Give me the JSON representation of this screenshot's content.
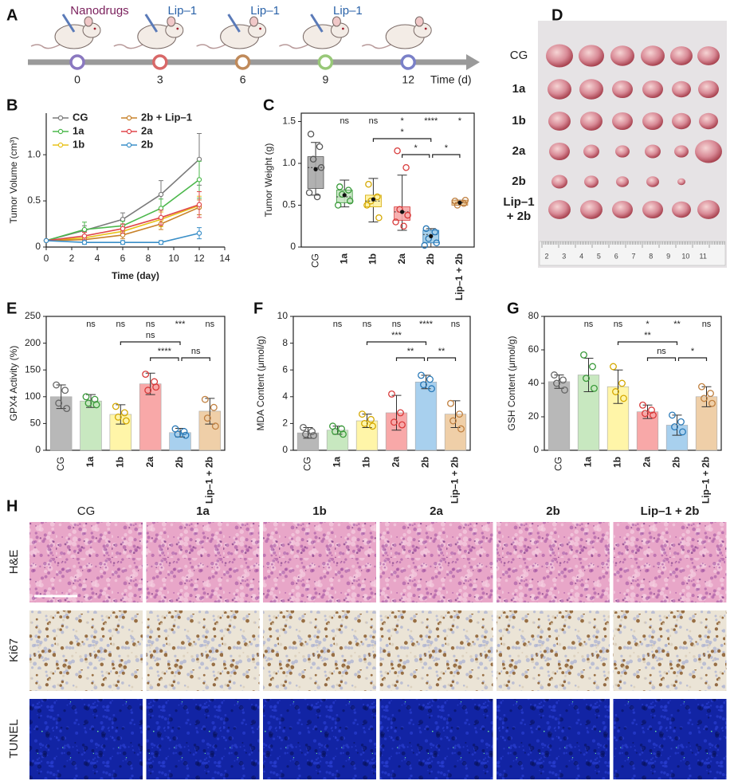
{
  "panel_labels": [
    "A",
    "B",
    "C",
    "D",
    "E",
    "F",
    "G",
    "H"
  ],
  "timeline": {
    "treatments": [
      "Nanodrugs",
      "Lip–1",
      "Lip–1",
      "Lip–1"
    ],
    "treatment_colors": [
      "#7a1f5c",
      "#2a62a8",
      "#2a62a8",
      "#2a62a8"
    ],
    "days": [
      0,
      3,
      6,
      9,
      12
    ],
    "day_colors": [
      "#8a78c0",
      "#d86868",
      "#c08a5a",
      "#98c878",
      "#7a80c8"
    ],
    "axis_label": "Time (d)"
  },
  "chart_data": [
    {
      "type": "line",
      "xlabel": "Time (day)",
      "ylabel": "Tumor Volume (cm³)",
      "x": [
        0,
        3,
        6,
        9,
        12
      ],
      "xlim": [
        0,
        14
      ],
      "xticks": [
        0,
        2,
        4,
        6,
        8,
        10,
        12,
        14
      ],
      "ylim": [
        0,
        1.45
      ],
      "yticks": [
        0,
        0.5,
        {
          "value": 1,
          "label": "1.0"
        }
      ],
      "series": [
        {
          "name": "CG",
          "color": "#7a7a7a",
          "values": [
            0.07,
            0.18,
            0.3,
            0.57,
            0.95
          ],
          "errors": [
            0.01,
            0.05,
            0.07,
            0.15,
            0.28
          ]
        },
        {
          "name": "1a",
          "color": "#4cb84c",
          "values": [
            0.07,
            0.19,
            0.23,
            0.42,
            0.73
          ],
          "errors": [
            0.01,
            0.08,
            0.05,
            0.1,
            0.2
          ]
        },
        {
          "name": "1b",
          "color": "#e8c21a",
          "values": [
            0.07,
            0.1,
            0.17,
            0.3,
            0.45
          ],
          "errors": [
            0.01,
            0.03,
            0.04,
            0.08,
            0.1
          ]
        },
        {
          "name": "2b + Lip–1",
          "color": "#c8822a",
          "values": [
            0.07,
            0.08,
            0.13,
            0.25,
            0.43
          ],
          "errors": [
            0.01,
            0.03,
            0.04,
            0.06,
            0.08
          ]
        },
        {
          "name": "2a",
          "color": "#e0474c",
          "values": [
            0.07,
            0.12,
            0.2,
            0.32,
            0.46
          ],
          "errors": [
            0.01,
            0.04,
            0.05,
            0.08,
            0.14
          ]
        },
        {
          "name": "2b",
          "color": "#3a8fc8",
          "values": [
            0.07,
            0.05,
            0.05,
            0.05,
            0.15
          ],
          "errors": [
            0.01,
            0.02,
            0.02,
            0.02,
            0.06
          ]
        }
      ]
    },
    {
      "type": "box",
      "ylabel": "Tumor Weight (g)",
      "categories": [
        "CG",
        "1a",
        "1b",
        "2a",
        "2b",
        "Lip–1 + 2b"
      ],
      "colors": [
        "#a8a8a8",
        "#c4e6c0",
        "#fff2a0",
        "#f6a8a8",
        "#a0cce8",
        "#efcf9f"
      ],
      "edge_colors": [
        "#555555",
        "#3a9a3a",
        "#d4a800",
        "#d83a3a",
        "#2a7ab8",
        "#c08040"
      ],
      "ylim": [
        0,
        1.6
      ],
      "yticks": [
        0,
        0.5,
        {
          "value": 1,
          "label": "1.0"
        },
        1.5
      ],
      "boxes": [
        {
          "whisker_low": 0.62,
          "q1": 0.7,
          "median": 0.95,
          "q3": 1.08,
          "whisker_high": 1.25,
          "mean": 0.93,
          "points": [
            1.35,
            1.2,
            1.05,
            0.95,
            0.65,
            0.6
          ]
        },
        {
          "whisker_low": 0.48,
          "q1": 0.53,
          "median": 0.6,
          "q3": 0.68,
          "whisker_high": 0.8,
          "mean": 0.62,
          "points": [
            0.72,
            0.68,
            0.63,
            0.55,
            0.5
          ]
        },
        {
          "whisker_low": 0.3,
          "q1": 0.48,
          "median": 0.55,
          "q3": 0.62,
          "whisker_high": 0.82,
          "mean": 0.57,
          "points": [
            0.75,
            0.6,
            0.55,
            0.35,
            0.5
          ]
        },
        {
          "whisker_low": 0.2,
          "q1": 0.32,
          "median": 0.42,
          "q3": 0.48,
          "whisker_high": 0.86,
          "mean": 0.42,
          "points": [
            1.15,
            0.95,
            0.45,
            0.38,
            0.3,
            0.25
          ]
        },
        {
          "whisker_low": 0,
          "q1": 0.05,
          "median": 0.15,
          "q3": 0.2,
          "whisker_high": 0.22,
          "mean": 0.13,
          "points": [
            0.22,
            0.18,
            0.1,
            0.05,
            0.02
          ]
        },
        {
          "whisker_low": 0.5,
          "q1": 0.5,
          "median": 0.53,
          "q3": 0.56,
          "whisker_high": 0.56,
          "mean": 0.53,
          "points": [
            0.55,
            0.52,
            0.5,
            0.56
          ]
        }
      ],
      "significance": [
        "ns",
        "ns",
        "*",
        "****",
        "*"
      ],
      "brackets": [
        "*",
        "*",
        "*"
      ]
    },
    {
      "type": "bar",
      "ylabel": "GPX4 Activity (%)",
      "categories": [
        "CG",
        "1a",
        "1b",
        "2a",
        "2b",
        "Lip–1 + 2b"
      ],
      "colors": [
        "#b8b8b8",
        "#c8e8c0",
        "#fff5a8",
        "#f8a8a8",
        "#a8d0ee",
        "#efcfa8"
      ],
      "edge_colors": [
        "#666666",
        "#3a9a3a",
        "#d4a800",
        "#d83a3a",
        "#2a7ab8",
        "#c08040"
      ],
      "ylim": [
        0,
        250
      ],
      "yticks": [
        0,
        50,
        100,
        150,
        200,
        250
      ],
      "values": [
        100,
        92,
        67,
        124,
        33,
        73
      ],
      "errors": [
        22,
        12,
        18,
        20,
        8,
        24
      ],
      "points": [
        [
          122,
          112,
          88,
          78
        ],
        [
          100,
          95,
          88,
          85
        ],
        [
          82,
          70,
          62,
          55
        ],
        [
          142,
          128,
          112,
          118
        ],
        [
          40,
          35,
          30,
          28
        ],
        [
          95,
          80,
          60,
          45
        ]
      ],
      "significance": [
        "ns",
        "ns",
        "ns",
        "***",
        "ns"
      ],
      "brackets": [
        "ns",
        "****",
        "ns"
      ]
    },
    {
      "type": "bar",
      "ylabel": "MDA Content (μmol/g)",
      "categories": [
        "CG",
        "1a",
        "1b",
        "2a",
        "2b",
        "Lip–1 + 2b"
      ],
      "colors": [
        "#b8b8b8",
        "#c8e8c0",
        "#fff5a8",
        "#f8a8a8",
        "#a8d0ee",
        "#efcfa8"
      ],
      "edge_colors": [
        "#666666",
        "#3a9a3a",
        "#d4a800",
        "#d83a3a",
        "#2a7ab8",
        "#c08040"
      ],
      "ylim": [
        0,
        10
      ],
      "yticks": [
        0,
        2,
        4,
        6,
        8,
        10
      ],
      "values": [
        1.3,
        1.5,
        2.2,
        2.8,
        5.1,
        2.7
      ],
      "errors": [
        0.4,
        0.3,
        0.5,
        1.3,
        0.5,
        1.0
      ],
      "points": [
        [
          1.7,
          1.4,
          1.2,
          1.1
        ],
        [
          1.8,
          1.6,
          1.4,
          1.2
        ],
        [
          2.7,
          2.3,
          2.0,
          1.8
        ],
        [
          4.2,
          2.8,
          2.1,
          1.9
        ],
        [
          5.6,
          5.3,
          4.9,
          4.6
        ],
        [
          3.5,
          2.7,
          2.2,
          1.6
        ]
      ],
      "significance": [
        "ns",
        "ns",
        "ns",
        "****",
        "ns"
      ],
      "brackets": [
        "***",
        "**",
        "**"
      ]
    },
    {
      "type": "bar",
      "ylabel": "GSH Content (μmol/g)",
      "categories": [
        "CG",
        "1a",
        "1b",
        "2a",
        "2b",
        "Lip–1 + 2b"
      ],
      "colors": [
        "#b8b8b8",
        "#c8e8c0",
        "#fff5a8",
        "#f8a8a8",
        "#a8d0ee",
        "#efcfa8"
      ],
      "edge_colors": [
        "#666666",
        "#3a9a3a",
        "#d4a800",
        "#d83a3a",
        "#2a7ab8",
        "#c08040"
      ],
      "ylim": [
        0,
        80
      ],
      "yticks": [
        0,
        20,
        40,
        60,
        80
      ],
      "values": [
        41,
        45,
        38,
        23,
        15,
        32
      ],
      "errors": [
        4,
        10,
        10,
        4,
        6,
        6
      ],
      "points": [
        [
          45,
          42,
          40,
          36
        ],
        [
          57,
          50,
          43,
          37
        ],
        [
          50,
          40,
          35,
          31
        ],
        [
          27,
          24,
          22,
          21
        ],
        [
          21,
          17,
          14,
          11
        ],
        [
          38,
          34,
          31,
          28
        ]
      ],
      "significance": [
        "ns",
        "ns",
        "*",
        "**",
        "ns"
      ],
      "brackets": [
        "**",
        "ns",
        "*"
      ]
    }
  ],
  "tumor_photo": {
    "rows": [
      "CG",
      "1a",
      "1b",
      "2a",
      "2b",
      "Lip–1 + 2b"
    ],
    "ruler_labels": [
      2,
      3,
      4,
      5,
      6,
      7,
      8,
      9,
      10,
      11
    ]
  },
  "histology": {
    "columns": [
      "CG",
      "1a",
      "1b",
      "2a",
      "2b",
      "Lip–1 + 2b"
    ],
    "rows": [
      "H&E",
      "Ki67",
      "TUNEL"
    ]
  }
}
